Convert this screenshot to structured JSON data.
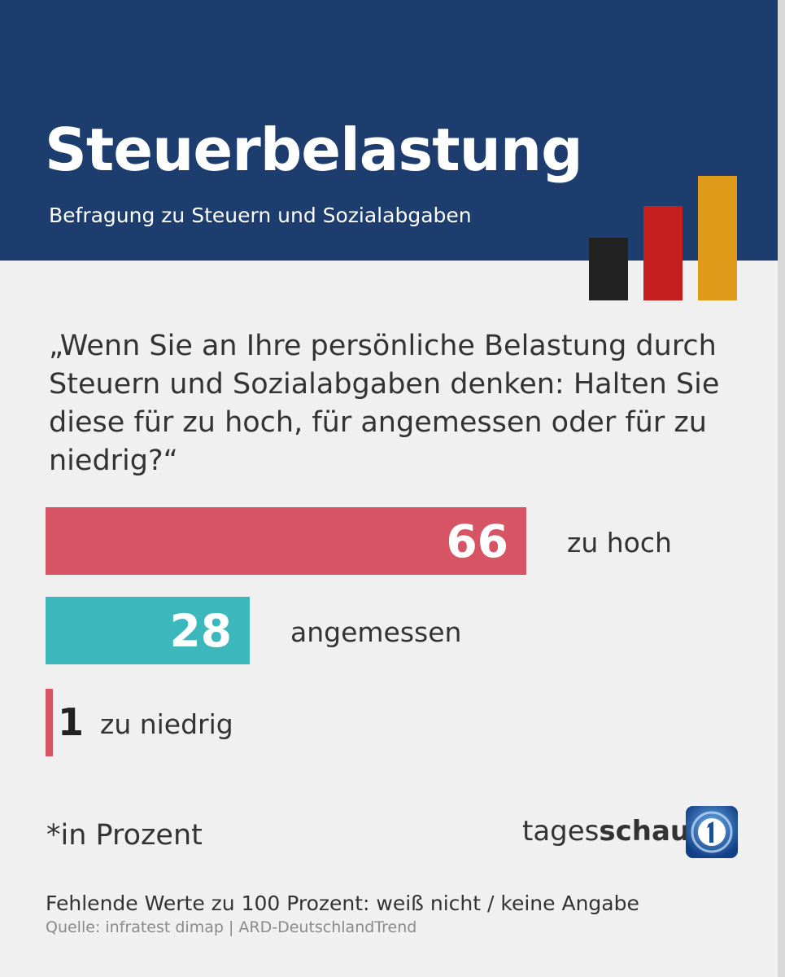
{
  "header": {
    "title": "Steuerbelastung",
    "subtitle": "Befragung zu Steuern und Sozialabgaben"
  },
  "colors": {
    "header_bg": "#1c3d6d",
    "page_bg": "#f0f0f0",
    "flag_black": "#222222",
    "flag_red": "#c41e1e",
    "flag_gold": "#e09a1a",
    "bar_red": "#d65463",
    "bar_teal": "#3cb8bd"
  },
  "question": "„Wenn Sie an Ihre persönliche Belastung durch Steuern und Sozialabgaben denken: Halten Sie diese für zu hoch, für angemessen oder für zu niedrig?“",
  "chart_data": {
    "type": "bar",
    "orientation": "horizontal",
    "categories": [
      "zu hoch",
      "angemessen",
      "zu niedrig"
    ],
    "values": [
      66,
      28,
      1
    ],
    "value_labels": [
      "66",
      "28",
      "1"
    ],
    "colors": [
      "#d65463",
      "#3cb8bd",
      "#d65463"
    ],
    "title": "Steuerbelastung",
    "subtitle": "Befragung zu Steuern und Sozialabgaben",
    "unit_note": "*in Prozent",
    "grid": false
  },
  "footer": {
    "unit_note": "*in Prozent",
    "logo": {
      "prefix": "tages",
      "suffix": "schau",
      "icon": "ard-one-icon"
    },
    "missing_note": "Fehlende Werte zu 100 Prozent: weiß nicht / keine Angabe",
    "source": "Quelle: infratest dimap | ARD-DeutschlandTrend"
  }
}
